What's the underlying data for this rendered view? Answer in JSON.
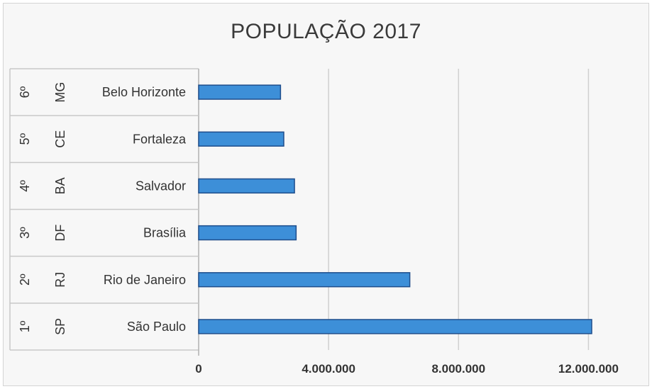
{
  "chart_data": {
    "type": "bar",
    "orientation": "horizontal",
    "title": "POPULAÇÃO 2017",
    "xlabel": "",
    "ylabel": "",
    "categories": [
      {
        "rank": "1º",
        "state": "SP",
        "city": "São Paulo"
      },
      {
        "rank": "2º",
        "state": "RJ",
        "city": "Rio de Janeiro"
      },
      {
        "rank": "3º",
        "state": "DF",
        "city": "Brasília"
      },
      {
        "rank": "4º",
        "state": "BA",
        "city": "Salvador"
      },
      {
        "rank": "5º",
        "state": "CE",
        "city": "Fortaleza"
      },
      {
        "rank": "6º",
        "state": "MG",
        "city": "Belo Horizonte"
      }
    ],
    "values": [
      12100000,
      6500000,
      3000000,
      2950000,
      2620000,
      2520000
    ],
    "xlim": [
      0,
      14000000
    ],
    "xticks": [
      0,
      4000000,
      8000000,
      12000000
    ],
    "xtick_labels": [
      "0",
      "4.000.000",
      "8.000.000",
      "12.000.000"
    ],
    "grid": "vertical",
    "legend": "none",
    "colors": {
      "bar_fill": "#3d8fd8",
      "bar_stroke": "#1f4e8c",
      "grid": "#d0d0d0",
      "background": "#f7f7f7"
    }
  }
}
